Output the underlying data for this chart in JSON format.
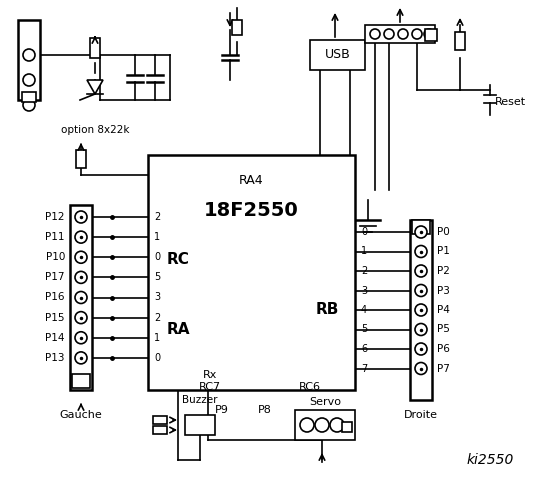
{
  "bg_color": "#ffffff",
  "title": "ki2550",
  "chip_label": "18F2550",
  "chip_sub": "RA4",
  "rc_label": "RC",
  "ra_label": "RA",
  "rb_label": "RB",
  "rc_pins": [
    "2",
    "1",
    "0",
    "5",
    "3",
    "2",
    "1",
    "0"
  ],
  "rb_pins": [
    "0",
    "1",
    "2",
    "3",
    "4",
    "5",
    "6",
    "7"
  ],
  "left_pins": [
    "P12",
    "P11",
    "P10",
    "P17",
    "P16",
    "P15",
    "P14",
    "P13"
  ],
  "right_pins": [
    "P0",
    "P1",
    "P2",
    "P3",
    "P4",
    "P5",
    "P6",
    "P7"
  ],
  "left_label": "Gauche",
  "right_label": "Droite",
  "option_label": "option 8x22k",
  "usb_label": "USB",
  "reset_label": "Reset",
  "buzzer_label": "Buzzer",
  "p9_label": "P9",
  "p8_label": "P8",
  "servo_label": "Servo",
  "rx_label": "Rx",
  "rc7_label": "RC7",
  "rc6_label": "RC6"
}
